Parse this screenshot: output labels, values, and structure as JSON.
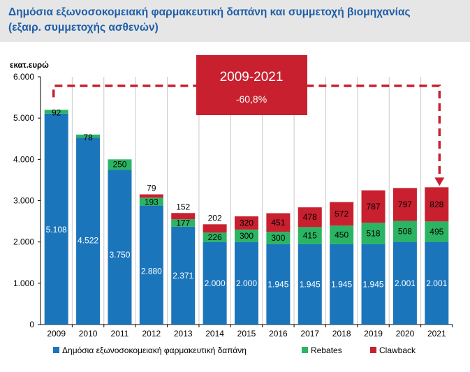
{
  "title_line1": "Δημόσια εξωνοσοκομειακή φαρμακευτική δαπάνη και συμμετοχή βιομηχανίας",
  "title_line2": "(εξαιρ. συμμετοχής ασθενών)",
  "chart_data": {
    "type": "bar",
    "stacked": true,
    "ylabel": "εκατ.ευρώ",
    "ylim": [
      0,
      6000
    ],
    "yticks": [
      "0",
      "1.000",
      "2.000",
      "3.000",
      "4.000",
      "5.000",
      "6.000"
    ],
    "categories": [
      "2009",
      "2010",
      "2011",
      "2012",
      "2013",
      "2014",
      "2015",
      "2016",
      "2017",
      "2018",
      "2019",
      "2020",
      "2021"
    ],
    "series": [
      {
        "name": "Δημόσια εξωνοσοκομειακή φαρμακευτική δαπάνη",
        "color": "#1b75bb",
        "values": [
          5108,
          4522,
          3750,
          2880,
          2371,
          2000,
          2000,
          1945,
          1945,
          1945,
          1945,
          2001,
          2001
        ],
        "labels": [
          "5.108",
          "4.522",
          "3.750",
          "2.880",
          "2.371",
          "2.000",
          "2.000",
          "1.945",
          "1.945",
          "1.945",
          "1.945",
          "2.001",
          "2.001"
        ]
      },
      {
        "name": "Rebates",
        "color": "#2bb463",
        "values": [
          92,
          78,
          250,
          193,
          177,
          226,
          300,
          300,
          415,
          450,
          518,
          508,
          495
        ],
        "labels": [
          "92",
          "78",
          "250",
          "193",
          "177",
          "226",
          "300",
          "300",
          "415",
          "450",
          "518",
          "508",
          "495"
        ]
      },
      {
        "name": "Clawback",
        "color": "#c8202f",
        "values": [
          0,
          0,
          0,
          79,
          152,
          202,
          320,
          451,
          478,
          572,
          787,
          797,
          828
        ],
        "labels": [
          "",
          "",
          "",
          "79",
          "152",
          "202",
          "320",
          "451",
          "478",
          "572",
          "787",
          "797",
          "828"
        ]
      }
    ],
    "annotation": {
      "title": "2009-2021",
      "value": "-60,8%",
      "from": "2009",
      "to": "2021",
      "color": "#c8202f"
    },
    "legend_position": "bottom"
  }
}
